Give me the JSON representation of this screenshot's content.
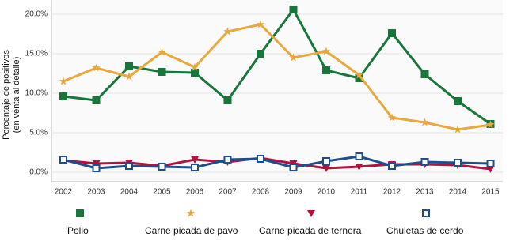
{
  "chart_data": {
    "type": "line",
    "y_label": [
      "Porcentaje de positivos",
      "(en venta al detalle)"
    ],
    "categories": [
      "2002",
      "2003",
      "2004",
      "2005",
      "2006",
      "2007",
      "2008",
      "2009",
      "2010",
      "2011",
      "2012",
      "2013",
      "2014",
      "2015"
    ],
    "ylim": [
      -1.2,
      21.8
    ],
    "yticks": [
      {
        "value": 0,
        "label": "0.0%"
      },
      {
        "value": 5,
        "label": "5.0%"
      },
      {
        "value": 10,
        "label": "10.0%"
      },
      {
        "value": 15,
        "label": "15.0%"
      },
      {
        "value": 20,
        "label": "20.0%"
      }
    ],
    "grid": true,
    "series": [
      {
        "name": "Pollo",
        "color": "#17773a",
        "marker": "square",
        "values": [
          9.6,
          9.1,
          13.4,
          12.7,
          12.6,
          9.1,
          15.0,
          20.6,
          12.9,
          11.9,
          17.6,
          12.4,
          9.0,
          6.1
        ]
      },
      {
        "name": "Carne picada de pavo",
        "color": "#e8a83e",
        "marker": "star",
        "values": [
          11.5,
          13.2,
          12.1,
          15.2,
          13.3,
          17.8,
          18.7,
          14.5,
          15.3,
          12.3,
          6.9,
          6.3,
          5.4,
          6.0
        ]
      },
      {
        "name": "Carne picada de ternera",
        "color": "#b3123c",
        "marker": "triangle-down",
        "values": [
          1.5,
          1.1,
          1.2,
          0.8,
          1.6,
          1.3,
          1.8,
          1.1,
          0.5,
          0.7,
          1.0,
          1.0,
          0.9,
          0.4
        ]
      },
      {
        "name": "Chuletas de cerdo",
        "color": "#1f4e8c",
        "marker": "square-open",
        "values": [
          1.6,
          0.5,
          0.8,
          0.7,
          0.6,
          1.6,
          1.7,
          0.6,
          1.4,
          2.0,
          0.8,
          1.3,
          1.2,
          1.1
        ]
      }
    ]
  }
}
